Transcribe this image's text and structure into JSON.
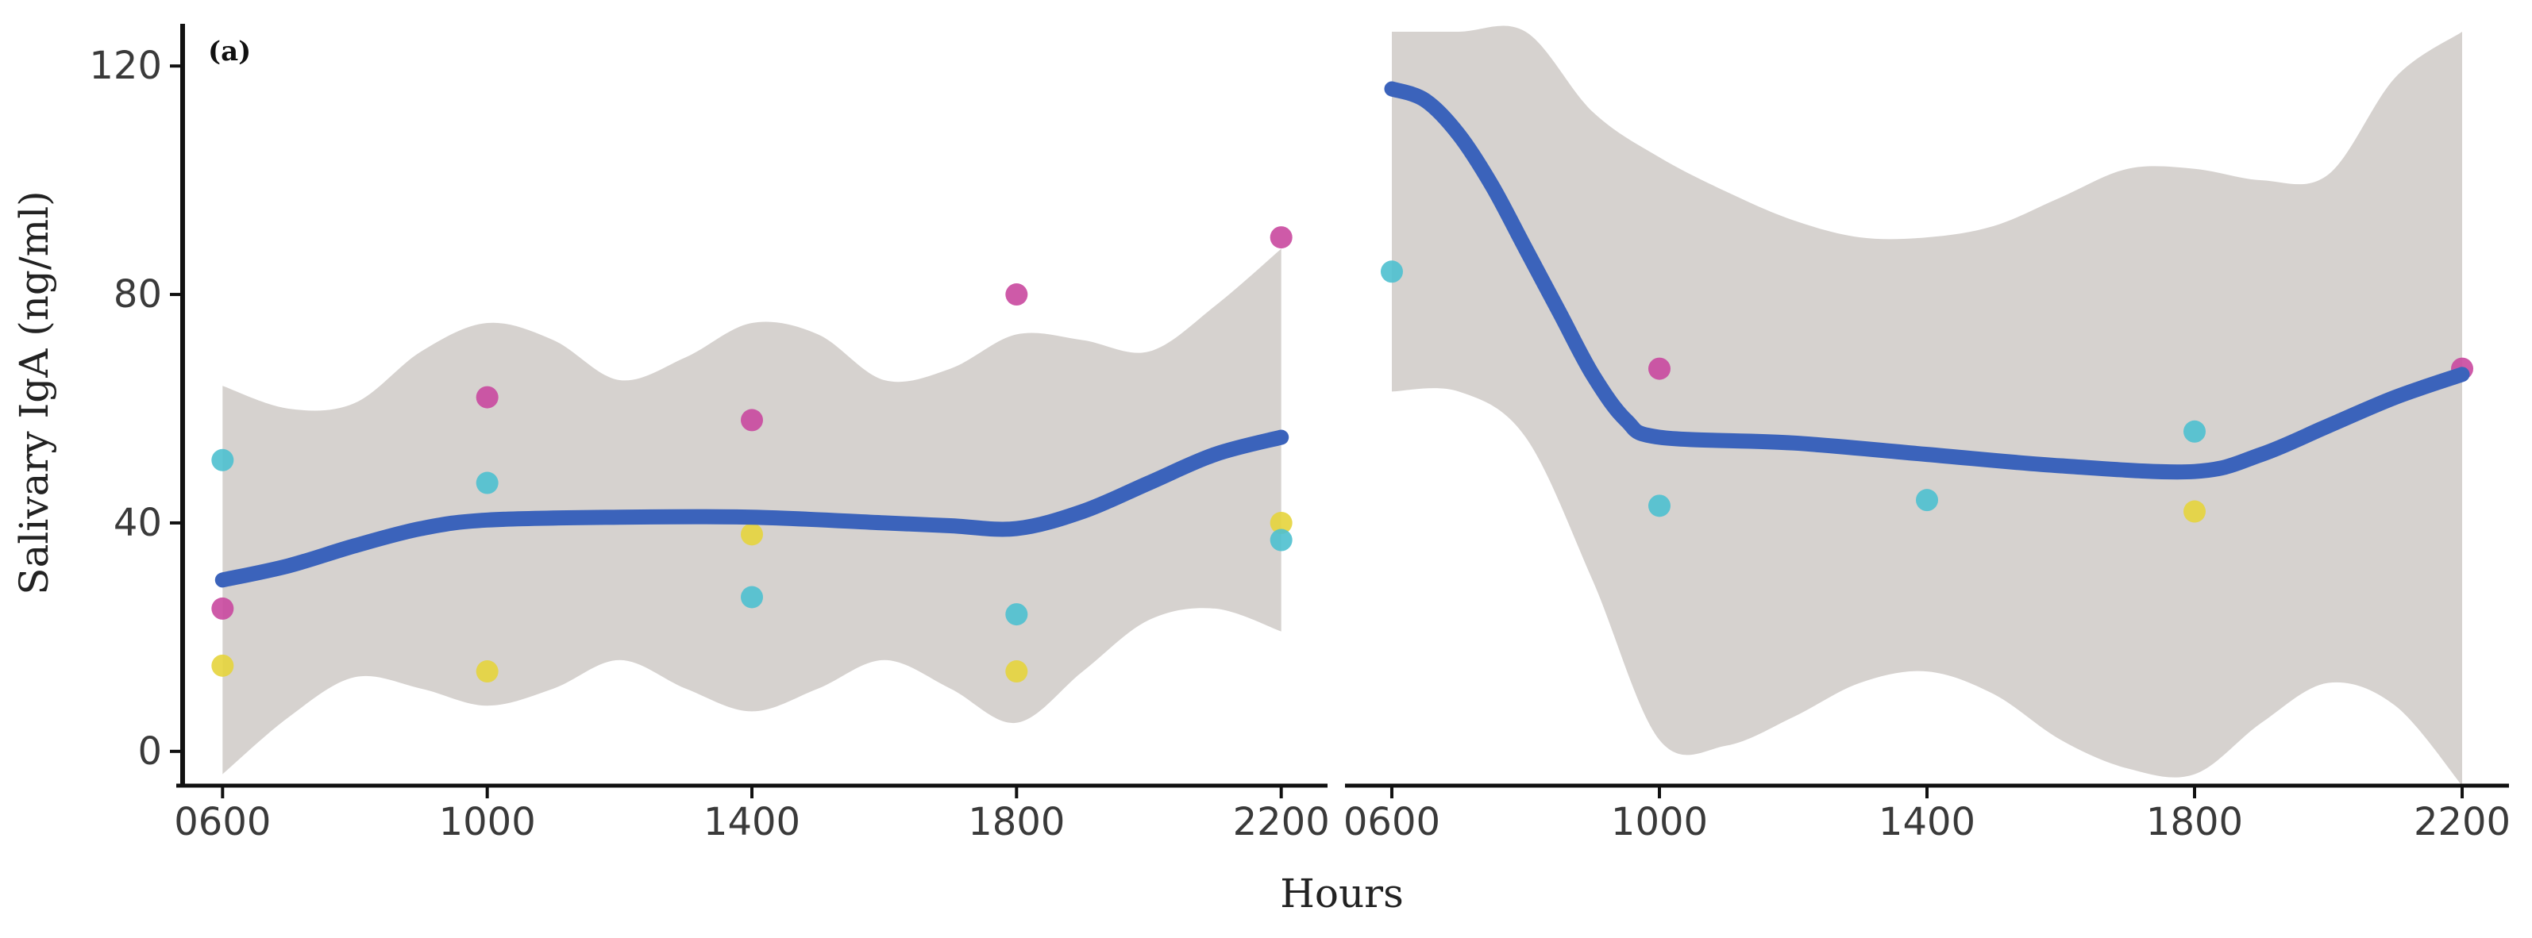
{
  "chart_data": {
    "type": "scatter",
    "panel_label": "(a)",
    "xlabel": "Hours",
    "ylabel": "Salivary IgA (ng/ml)",
    "x_ticks": [
      "0600",
      "1000",
      "1400",
      "1800",
      "2200"
    ],
    "x_values": [
      600,
      1000,
      1400,
      1800,
      2200
    ],
    "y_ticks": [
      "0",
      "40",
      "80",
      "120"
    ],
    "ylim": [
      -6,
      126
    ],
    "xlim": [
      530,
      2270
    ],
    "grid": false,
    "colors": {
      "magenta": "#c9489e",
      "cyan": "#4ec0cf",
      "yellow": "#e6d43c",
      "trend": "#3b63bb",
      "band": "#d6d2cf",
      "axis": "#111111"
    },
    "panels": [
      {
        "points": [
          {
            "x": 600,
            "y": 51,
            "color": "cyan"
          },
          {
            "x": 600,
            "y": 25,
            "color": "magenta"
          },
          {
            "x": 600,
            "y": 15,
            "color": "yellow"
          },
          {
            "x": 1000,
            "y": 62,
            "color": "magenta"
          },
          {
            "x": 1000,
            "y": 47,
            "color": "cyan"
          },
          {
            "x": 1000,
            "y": 14,
            "color": "yellow"
          },
          {
            "x": 1400,
            "y": 58,
            "color": "magenta"
          },
          {
            "x": 1400,
            "y": 38,
            "color": "yellow"
          },
          {
            "x": 1400,
            "y": 27,
            "color": "cyan"
          },
          {
            "x": 1800,
            "y": 80,
            "color": "magenta"
          },
          {
            "x": 1800,
            "y": 24,
            "color": "cyan"
          },
          {
            "x": 1800,
            "y": 14,
            "color": "yellow"
          },
          {
            "x": 2200,
            "y": 90,
            "color": "magenta"
          },
          {
            "x": 2200,
            "y": 40,
            "color": "yellow"
          },
          {
            "x": 2200,
            "y": 37,
            "color": "cyan"
          }
        ],
        "trend": {
          "x": [
            600,
            700,
            800,
            900,
            1000,
            1200,
            1400,
            1600,
            1700,
            1800,
            1900,
            2000,
            2100,
            2200
          ],
          "y": [
            30,
            32.5,
            36,
            39,
            40.5,
            41,
            41,
            40,
            39.5,
            39,
            42,
            47,
            52,
            55
          ]
        },
        "band": {
          "x": [
            600,
            700,
            800,
            900,
            1000,
            1100,
            1200,
            1300,
            1400,
            1500,
            1600,
            1700,
            1800,
            1900,
            2000,
            2100,
            2200
          ],
          "upper": [
            64,
            60,
            61,
            70,
            75,
            72,
            65,
            69,
            75,
            73,
            65,
            67,
            73,
            72,
            70,
            78,
            88
          ],
          "lower": [
            -4,
            6,
            13,
            11,
            8,
            11,
            16,
            11,
            7,
            11,
            16,
            11,
            5,
            14,
            23,
            25,
            21
          ]
        }
      },
      {
        "points": [
          {
            "x": 600,
            "y": 84,
            "color": "cyan"
          },
          {
            "x": 1000,
            "y": 67,
            "color": "magenta"
          },
          {
            "x": 1000,
            "y": 43,
            "color": "cyan"
          },
          {
            "x": 1400,
            "y": 44,
            "color": "cyan"
          },
          {
            "x": 1800,
            "y": 56,
            "color": "cyan"
          },
          {
            "x": 1800,
            "y": 42,
            "color": "yellow"
          },
          {
            "x": 2200,
            "y": 67,
            "color": "magenta"
          }
        ],
        "trend": {
          "x": [
            600,
            650,
            700,
            750,
            800,
            850,
            900,
            950,
            1000,
            1200,
            1400,
            1600,
            1800,
            1900,
            2000,
            2100,
            2200
          ],
          "y": [
            116,
            114,
            108,
            99,
            88,
            77,
            66,
            58,
            55,
            54,
            52,
            50,
            49,
            52,
            57,
            62,
            66
          ]
        },
        "band": {
          "x": [
            600,
            700,
            800,
            900,
            1000,
            1100,
            1200,
            1300,
            1400,
            1500,
            1600,
            1700,
            1800,
            1900,
            2000,
            2100,
            2200
          ],
          "upper": [
            126,
            126,
            126,
            112,
            104,
            98,
            93,
            90,
            90,
            92,
            97,
            102,
            102,
            100,
            101,
            118,
            126
          ],
          "lower": [
            63,
            63,
            55,
            30,
            2,
            1,
            6,
            12,
            14,
            10,
            2,
            -3,
            -4,
            5,
            12,
            8,
            -6
          ]
        }
      }
    ]
  }
}
